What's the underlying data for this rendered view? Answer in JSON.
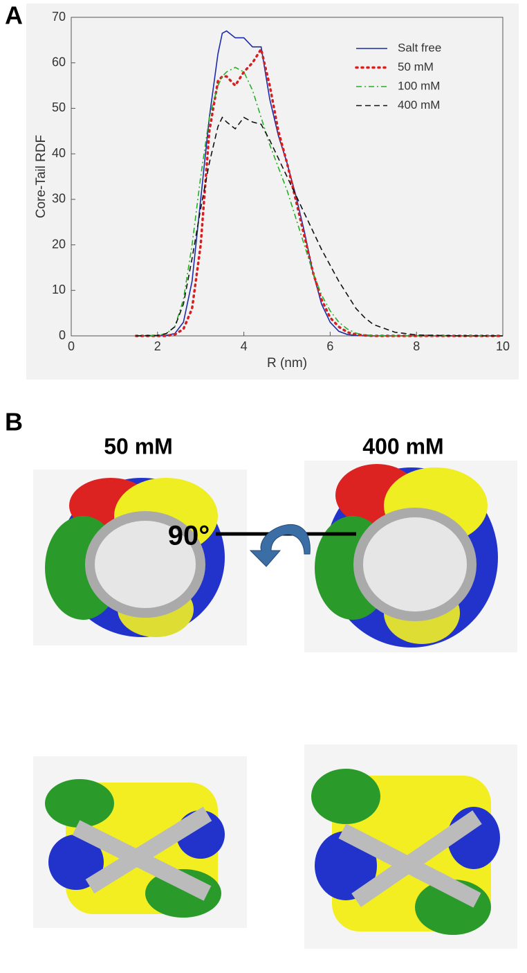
{
  "panels": {
    "a": "A",
    "b": "B"
  },
  "chart_data": {
    "type": "line",
    "xlabel": "R (nm)",
    "ylabel": "Core-Tail RDF",
    "xlim": [
      0,
      10
    ],
    "ylim": [
      0,
      70
    ],
    "xticks": [
      0,
      2,
      4,
      6,
      8,
      10
    ],
    "yticks": [
      0,
      10,
      20,
      30,
      40,
      50,
      60,
      70
    ],
    "legend": "upper right",
    "x": [
      1.5,
      2,
      2.2,
      2.4,
      2.6,
      2.8,
      3.0,
      3.2,
      3.4,
      3.5,
      3.6,
      3.8,
      4.0,
      4.2,
      4.4,
      4.6,
      4.8,
      5.0,
      5.2,
      5.4,
      5.6,
      5.8,
      6.0,
      6.2,
      6.4,
      6.6,
      6.8,
      7.0,
      7.5,
      8,
      9,
      10
    ],
    "series": [
      {
        "name": "Salt free",
        "color": "#1a2aa8",
        "style": "solid",
        "values": [
          0,
          0,
          0.1,
          0.5,
          3,
          12,
          30,
          48,
          62,
          66.5,
          67,
          65.5,
          65.5,
          63.5,
          63.5,
          52,
          44,
          38,
          31,
          23,
          14,
          7,
          3,
          1,
          0.3,
          0.1,
          0,
          0,
          0,
          0,
          0,
          0
        ]
      },
      {
        "name": "50 mM",
        "color": "#d42020",
        "style": "dotted",
        "values": [
          0,
          0,
          0,
          0.3,
          1.5,
          6,
          20,
          45,
          56,
          57,
          57,
          55,
          58,
          60,
          63,
          55,
          45,
          38,
          30,
          22,
          14,
          8,
          4,
          2,
          0.8,
          0.3,
          0.1,
          0,
          0,
          0,
          0,
          0
        ]
      },
      {
        "name": "100 mM",
        "color": "#22b022",
        "style": "dashdot",
        "values": [
          0,
          0.1,
          0.5,
          2,
          8,
          20,
          35,
          48,
          55,
          57,
          58,
          59,
          58,
          54,
          48,
          42,
          37,
          32,
          26,
          20,
          14,
          9,
          5.5,
          3,
          1.5,
          0.6,
          0.2,
          0.1,
          0,
          0,
          0,
          0
        ]
      },
      {
        "name": "400 mM",
        "color": "#111111",
        "style": "dashed",
        "values": [
          0,
          0.1,
          0.5,
          2,
          7,
          17,
          28,
          38,
          46,
          48,
          47,
          45.5,
          48,
          47,
          46.5,
          43,
          39,
          35,
          31,
          27,
          23,
          19,
          15.5,
          12,
          9,
          6,
          4,
          2.5,
          0.8,
          0.2,
          0,
          0
        ]
      }
    ]
  },
  "images": {
    "titles": [
      "50 mM",
      "400 mM"
    ],
    "rotation": "90°"
  }
}
